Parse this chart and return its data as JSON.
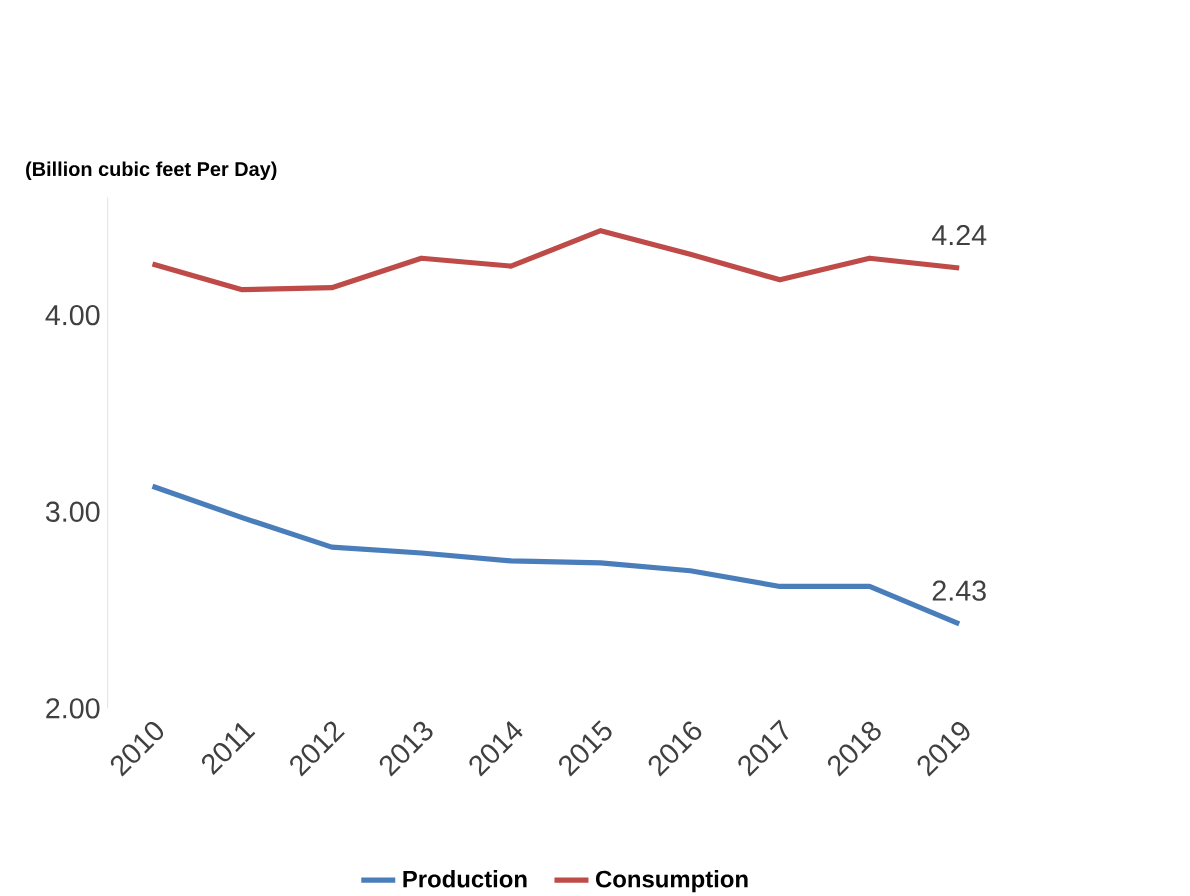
{
  "chart_data": {
    "type": "line",
    "annotations": [
      "(Billion cubic feet Per Day)"
    ],
    "categories": [
      "2010",
      "2011",
      "2012",
      "2013",
      "2014",
      "2015",
      "2016",
      "2017",
      "2018",
      "2019"
    ],
    "series": [
      {
        "name": "Production",
        "color": "#4a7ebb",
        "values": [
          3.13,
          2.97,
          2.82,
          2.79,
          2.75,
          2.74,
          2.7,
          2.62,
          2.62,
          2.43
        ],
        "value_labels": [
          null,
          null,
          null,
          null,
          null,
          null,
          null,
          null,
          null,
          "2.43"
        ]
      },
      {
        "name": "Consumption",
        "color": "#be4b48",
        "values": [
          4.26,
          4.13,
          4.14,
          4.29,
          4.25,
          4.43,
          4.31,
          4.18,
          4.29,
          4.24
        ],
        "value_labels": [
          null,
          null,
          null,
          null,
          null,
          null,
          null,
          null,
          null,
          "4.24"
        ]
      }
    ],
    "ylim": [
      2,
      4.6
    ],
    "yticks": [
      {
        "value": 2,
        "label": "2.00"
      },
      {
        "value": 3,
        "label": "3.00"
      },
      {
        "value": 4,
        "label": "4.00"
      }
    ],
    "grid": false,
    "legend": "bottom",
    "marker": "none",
    "line_style": "solid"
  }
}
